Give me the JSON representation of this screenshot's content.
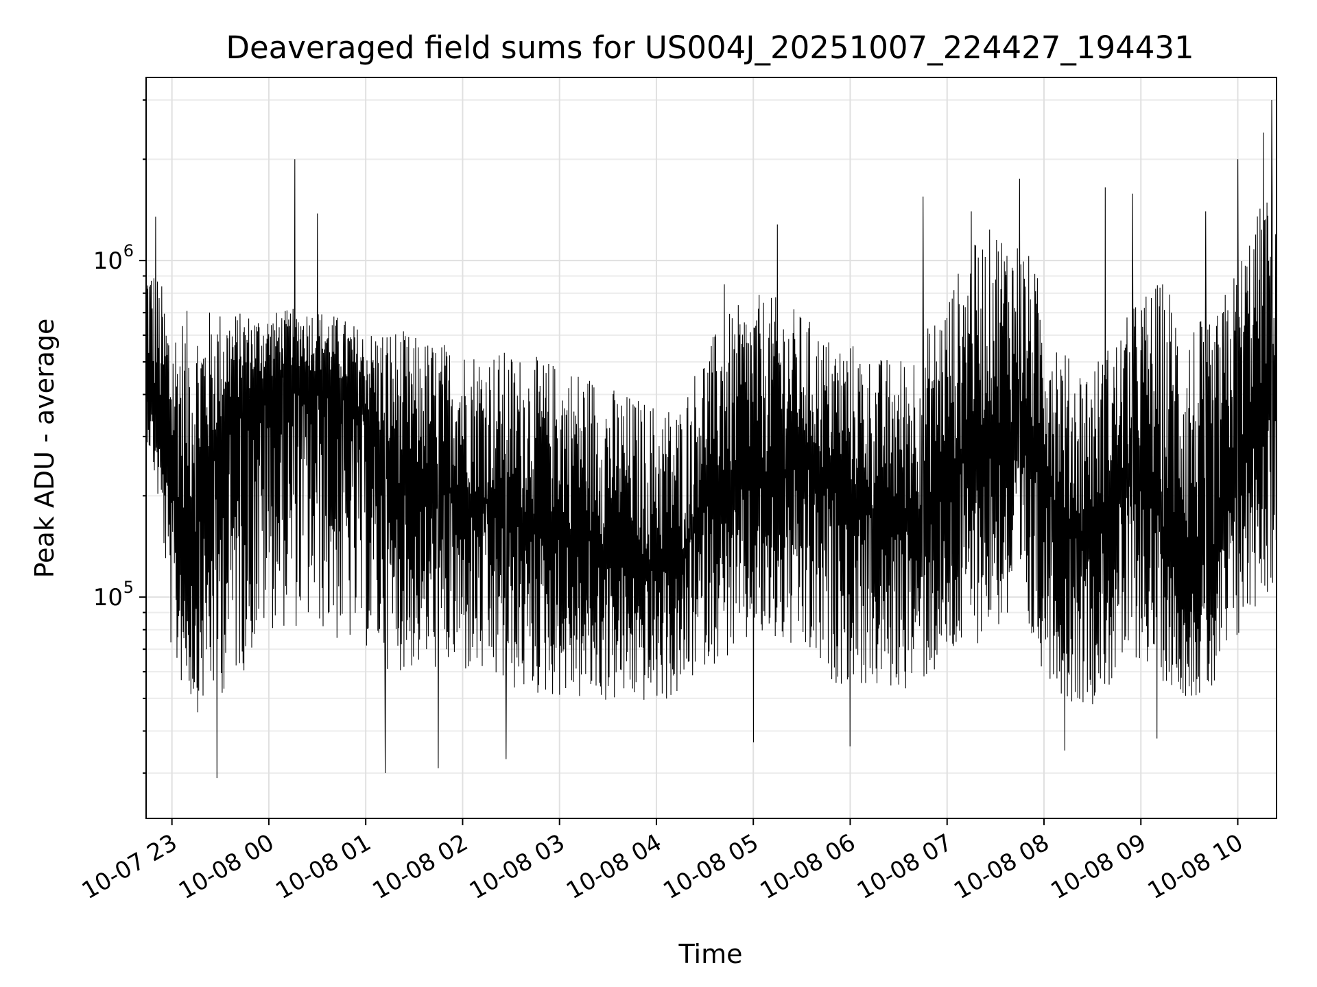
{
  "chart_data": {
    "type": "line",
    "title": "Deaveraged field sums for US004J_20251007_224427_194431",
    "xlabel": "Time",
    "ylabel": "Peak ADU - average",
    "yscale": "log",
    "ylim": [
      22000,
      3500000
    ],
    "xlim": [
      "2025-10-07 22:44",
      "2025-10-08 10:24"
    ],
    "grid": true,
    "grid_minor": true,
    "x_ticks": [
      "10-07 23",
      "10-08 00",
      "10-08 01",
      "10-08 02",
      "10-08 03",
      "10-08 04",
      "10-08 05",
      "10-08 06",
      "10-08 07",
      "10-08 08",
      "10-08 09",
      "10-08 10"
    ],
    "y_ticks": [
      {
        "value": 100000,
        "base": "10",
        "exp": "5"
      },
      {
        "value": 1000000,
        "base": "10",
        "exp": "6"
      }
    ],
    "series": [
      {
        "color": "#000000",
        "x": [
          "2025-10-07 22:44",
          "2025-10-07 23:00",
          "2025-10-07 23:15",
          "2025-10-07 23:30",
          "2025-10-07 23:45",
          "2025-10-08 00:00",
          "2025-10-08 00:15",
          "2025-10-08 00:30",
          "2025-10-08 00:45",
          "2025-10-08 01:00",
          "2025-10-08 01:15",
          "2025-10-08 01:30",
          "2025-10-08 01:45",
          "2025-10-08 02:00",
          "2025-10-08 02:15",
          "2025-10-08 02:30",
          "2025-10-08 02:45",
          "2025-10-08 03:00",
          "2025-10-08 03:15",
          "2025-10-08 03:30",
          "2025-10-08 03:45",
          "2025-10-08 04:00",
          "2025-10-08 04:15",
          "2025-10-08 04:30",
          "2025-10-08 04:45",
          "2025-10-08 05:00",
          "2025-10-08 05:15",
          "2025-10-08 05:30",
          "2025-10-08 05:45",
          "2025-10-08 06:00",
          "2025-10-08 06:15",
          "2025-10-08 06:30",
          "2025-10-08 06:45",
          "2025-10-08 07:00",
          "2025-10-08 07:15",
          "2025-10-08 07:30",
          "2025-10-08 07:45",
          "2025-10-08 08:00",
          "2025-10-08 08:15",
          "2025-10-08 08:30",
          "2025-10-08 08:45",
          "2025-10-08 09:00",
          "2025-10-08 09:15",
          "2025-10-08 09:30",
          "2025-10-08 09:45",
          "2025-10-08 10:00",
          "2025-10-08 10:15",
          "2025-10-08 10:24"
        ],
        "y_mid": [
          450000,
          200000,
          150000,
          300000,
          400000,
          430000,
          480000,
          460000,
          400000,
          350000,
          220000,
          200000,
          220000,
          200000,
          190000,
          170000,
          170000,
          160000,
          150000,
          140000,
          130000,
          120000,
          120000,
          200000,
          200000,
          220000,
          230000,
          250000,
          220000,
          200000,
          170000,
          160000,
          180000,
          230000,
          280000,
          330000,
          310000,
          230000,
          150000,
          160000,
          200000,
          240000,
          150000,
          120000,
          130000,
          250000,
          400000,
          450000
        ],
        "y_low": [
          300000,
          60000,
          45000,
          50000,
          60000,
          80000,
          80000,
          80000,
          70000,
          70000,
          60000,
          60000,
          60000,
          58000,
          55000,
          52000,
          50000,
          50000,
          48000,
          48000,
          48000,
          48000,
          50000,
          62000,
          65000,
          70000,
          70000,
          65000,
          55000,
          55000,
          52000,
          52000,
          55000,
          60000,
          70000,
          80000,
          75000,
          60000,
          48000,
          48000,
          55000,
          65000,
          55000,
          50000,
          50000,
          70000,
          100000,
          100000
        ],
        "y_high": [
          1100000,
          700000,
          720000,
          720000,
          700000,
          700000,
          720000,
          720000,
          680000,
          620000,
          650000,
          600000,
          580000,
          560000,
          550000,
          540000,
          520000,
          500000,
          480000,
          430000,
          400000,
          380000,
          380000,
          550000,
          700000,
          800000,
          780000,
          700000,
          600000,
          580000,
          520000,
          520000,
          600000,
          800000,
          1100000,
          1300000,
          1200000,
          800000,
          520000,
          500000,
          600000,
          800000,
          900000,
          700000,
          650000,
          1000000,
          1500000,
          1700000
        ],
        "spikes": [
          {
            "x": "2025-10-07 22:50",
            "y": 1350000
          },
          {
            "x": "2025-10-08 00:16",
            "y": 2000000
          },
          {
            "x": "2025-10-08 00:30",
            "y": 1380000
          },
          {
            "x": "2025-10-08 04:42",
            "y": 850000
          },
          {
            "x": "2025-10-08 05:15",
            "y": 1280000
          },
          {
            "x": "2025-10-08 06:45",
            "y": 1550000
          },
          {
            "x": "2025-10-08 07:15",
            "y": 1400000
          },
          {
            "x": "2025-10-08 07:45",
            "y": 1750000
          },
          {
            "x": "2025-10-08 08:38",
            "y": 1650000
          },
          {
            "x": "2025-10-08 08:55",
            "y": 1580000
          },
          {
            "x": "2025-10-08 09:40",
            "y": 1400000
          },
          {
            "x": "2025-10-08 10:00",
            "y": 2000000
          },
          {
            "x": "2025-10-08 10:16",
            "y": 2400000
          },
          {
            "x": "2025-10-08 10:21",
            "y": 3000000
          }
        ],
        "dips": [
          {
            "x": "2025-10-07 23:28",
            "y": 29000
          },
          {
            "x": "2025-10-08 01:12",
            "y": 30000
          },
          {
            "x": "2025-10-08 01:45",
            "y": 31000
          },
          {
            "x": "2025-10-08 02:27",
            "y": 33000
          },
          {
            "x": "2025-10-08 05:00",
            "y": 37000
          },
          {
            "x": "2025-10-08 06:00",
            "y": 36000
          },
          {
            "x": "2025-10-08 08:13",
            "y": 35000
          },
          {
            "x": "2025-10-08 09:10",
            "y": 38000
          }
        ]
      }
    ]
  }
}
